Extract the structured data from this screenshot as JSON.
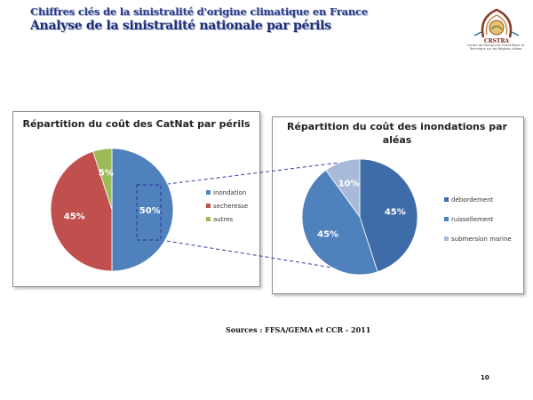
{
  "header": {
    "subtitle": "Chiffres clés de la sinistralité d'origine climatique en France",
    "title": "Analyse de la sinistralité nationale par périls"
  },
  "logo": {
    "acronym": "CRSTRA",
    "org_name": "Centre de Recherche Scientifique et Technique sur les Régions Arides"
  },
  "chart_data": [
    {
      "type": "pie",
      "title": "Répartition du coût des CatNat par périls",
      "categories": [
        "inondation",
        "secheresse",
        "autres"
      ],
      "values": [
        50,
        45,
        5
      ],
      "labels": [
        "50%",
        "45%",
        "5%"
      ],
      "colors": [
        "#4f81bd",
        "#c0504d",
        "#9bbb59"
      ],
      "legend": "right"
    },
    {
      "type": "pie",
      "title": "Répartition du coût des inondations par aléas",
      "categories": [
        "débordement",
        "ruissellement",
        "submersion marine"
      ],
      "values": [
        45,
        45,
        10
      ],
      "labels": [
        "45%",
        "45%",
        "10%"
      ],
      "colors": [
        "#3d6ca8",
        "#4f81bd",
        "#a8bad8"
      ],
      "legend": "right"
    }
  ],
  "footer": {
    "source": "Sources : FFSA/GEMA et CCR - 2011",
    "page_number": "10"
  }
}
